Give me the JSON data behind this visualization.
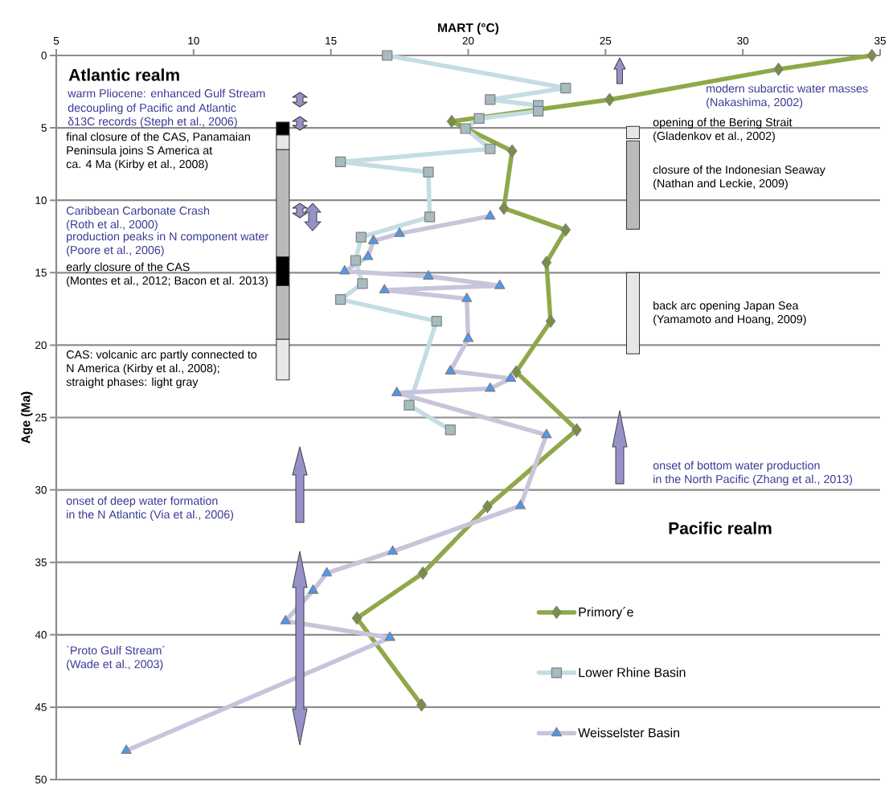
{
  "chart_data": {
    "type": "line",
    "xlabel": "MART (°C)",
    "ylabel": "Age (Ma)",
    "xlim": [
      5,
      35
    ],
    "ylim": [
      50,
      0
    ],
    "xticks": [
      5,
      10,
      15,
      20,
      25,
      30,
      35
    ],
    "yticks": [
      0,
      5,
      10,
      15,
      20,
      25,
      30,
      35,
      40,
      45,
      50
    ],
    "grid": "y",
    "legend": "bottom right",
    "line_style": "solid",
    "series": [
      {
        "name": "Primory´e",
        "color": "#8fa84a",
        "marker": "diamond",
        "x": [
          34.7,
          31.3,
          25.15,
          19.4,
          21.6,
          21.3,
          23.55,
          22.85,
          23.0,
          21.75,
          23.95,
          20.7,
          18.35,
          15.95,
          18.3
        ],
        "values": [
          0,
          0.95,
          3.05,
          4.55,
          6.6,
          10.55,
          12.05,
          14.3,
          18.35,
          21.85,
          25.85,
          31.15,
          35.75,
          38.85,
          44.85
        ]
      },
      {
        "name": "Lower Rhine Basin",
        "color": "#c4dde2",
        "marker": "square",
        "x": [
          17.05,
          23.55,
          20.8,
          22.55,
          22.55,
          20.4,
          19.9,
          20.8,
          15.35,
          18.55,
          18.6,
          16.1,
          15.9,
          16.15,
          15.35,
          18.85,
          17.85,
          19.35
        ],
        "values": [
          0,
          2.25,
          3.05,
          3.45,
          3.85,
          4.35,
          5.05,
          6.45,
          7.35,
          8.05,
          11.15,
          12.55,
          14.15,
          15.75,
          16.85,
          18.35,
          24.15,
          25.85
        ]
      },
      {
        "type": "bar",
        "x": [
          13.25
        ],
        "base": [
          4.6
        ],
        "values": [
          0.9
        ],
        "color": "#000000"
      },
      {
        "type": "bar",
        "x": [
          13.25
        ],
        "base": [
          5.5
        ],
        "values": [
          1.0
        ],
        "color": "#e6e7e8"
      },
      {
        "type": "bar",
        "x": [
          13.25
        ],
        "base": [
          6.5
        ],
        "values": [
          7.4
        ],
        "color": "#b9babb"
      },
      {
        "type": "bar",
        "x": [
          13.25
        ],
        "base": [
          13.9
        ],
        "values": [
          2.0
        ],
        "color": "#000000"
      },
      {
        "type": "bar",
        "x": [
          13.25
        ],
        "base": [
          15.9
        ],
        "values": [
          3.7
        ],
        "color": "#b9babb"
      },
      {
        "type": "bar",
        "x": [
          13.25
        ],
        "base": [
          19.6
        ],
        "values": [
          2.8
        ],
        "color": "#e6e7e8"
      },
      {
        "type": "bar",
        "x": [
          26.0
        ],
        "base": [
          4.9
        ],
        "values": [
          0.85
        ],
        "color": "#e6e7e8"
      },
      {
        "type": "bar",
        "x": [
          26.0
        ],
        "base": [
          5.9
        ],
        "values": [
          6.1
        ],
        "color": "#b9babb"
      },
      {
        "type": "bar",
        "x": [
          26.0
        ],
        "base": [
          15.0
        ],
        "values": [
          5.6
        ],
        "color": "#e6e7e8"
      },
      {
        "name": "Weisselster Basin",
        "color": "#c7c5db",
        "marker": "triangle",
        "x": [
          20.8,
          17.5,
          16.55,
          16.35,
          15.5,
          18.55,
          21.15,
          16.95,
          19.95,
          20.0,
          19.35,
          21.55,
          20.8,
          17.4,
          22.85,
          21.9,
          17.25,
          14.85,
          14.35,
          13.35,
          17.15,
          7.55
        ],
        "values": [
          11.1,
          12.3,
          12.8,
          13.9,
          14.9,
          15.25,
          15.9,
          16.2,
          16.8,
          19.55,
          21.8,
          22.3,
          23.0,
          23.3,
          26.2,
          31.1,
          34.25,
          35.75,
          36.95,
          39.05,
          40.2,
          48.0
        ]
      }
    ],
    "annotations": [
      "Atlantic realm",
      "warm Pliocene: enhanced Gulf Stream",
      "decoupling of Pacific and Atlantic δ13C records (Steph et al., 2006)",
      "final closure of the CAS, Panamaian Peninsula joins S America at ca. 4 Ma (Kirby et al., 2008)",
      "Caribbean Carbonate Crash (Roth et al., 2000)",
      "production peaks in N component water (Poore et al., 2006)",
      "early closure of the CAS (Montes et al., 2012; Bacon et al. 2013)",
      "CAS: volcanic arc partly connected to N America (Kirby et al., 2008); straight phases: light gray",
      "onset of deep water formation in the N Atlantic (Via et al., 2006)",
      "`Proto Gulf Stream´ (Wade et al., 2003)",
      "modern subarctic water masses (Nakashima, 2002)",
      "opening of the Bering Strait (Gladenkov et al., 2002)",
      "closure of the Indonesian Seaway (Nathan and Leckie, 2009)",
      "back arc opening Japan Sea (Yamamoto and Hoang, 2009)",
      "onset of bottom water production in the North Pacific (Zhang et al., 2013)",
      "Pacific realm"
    ]
  }
}
